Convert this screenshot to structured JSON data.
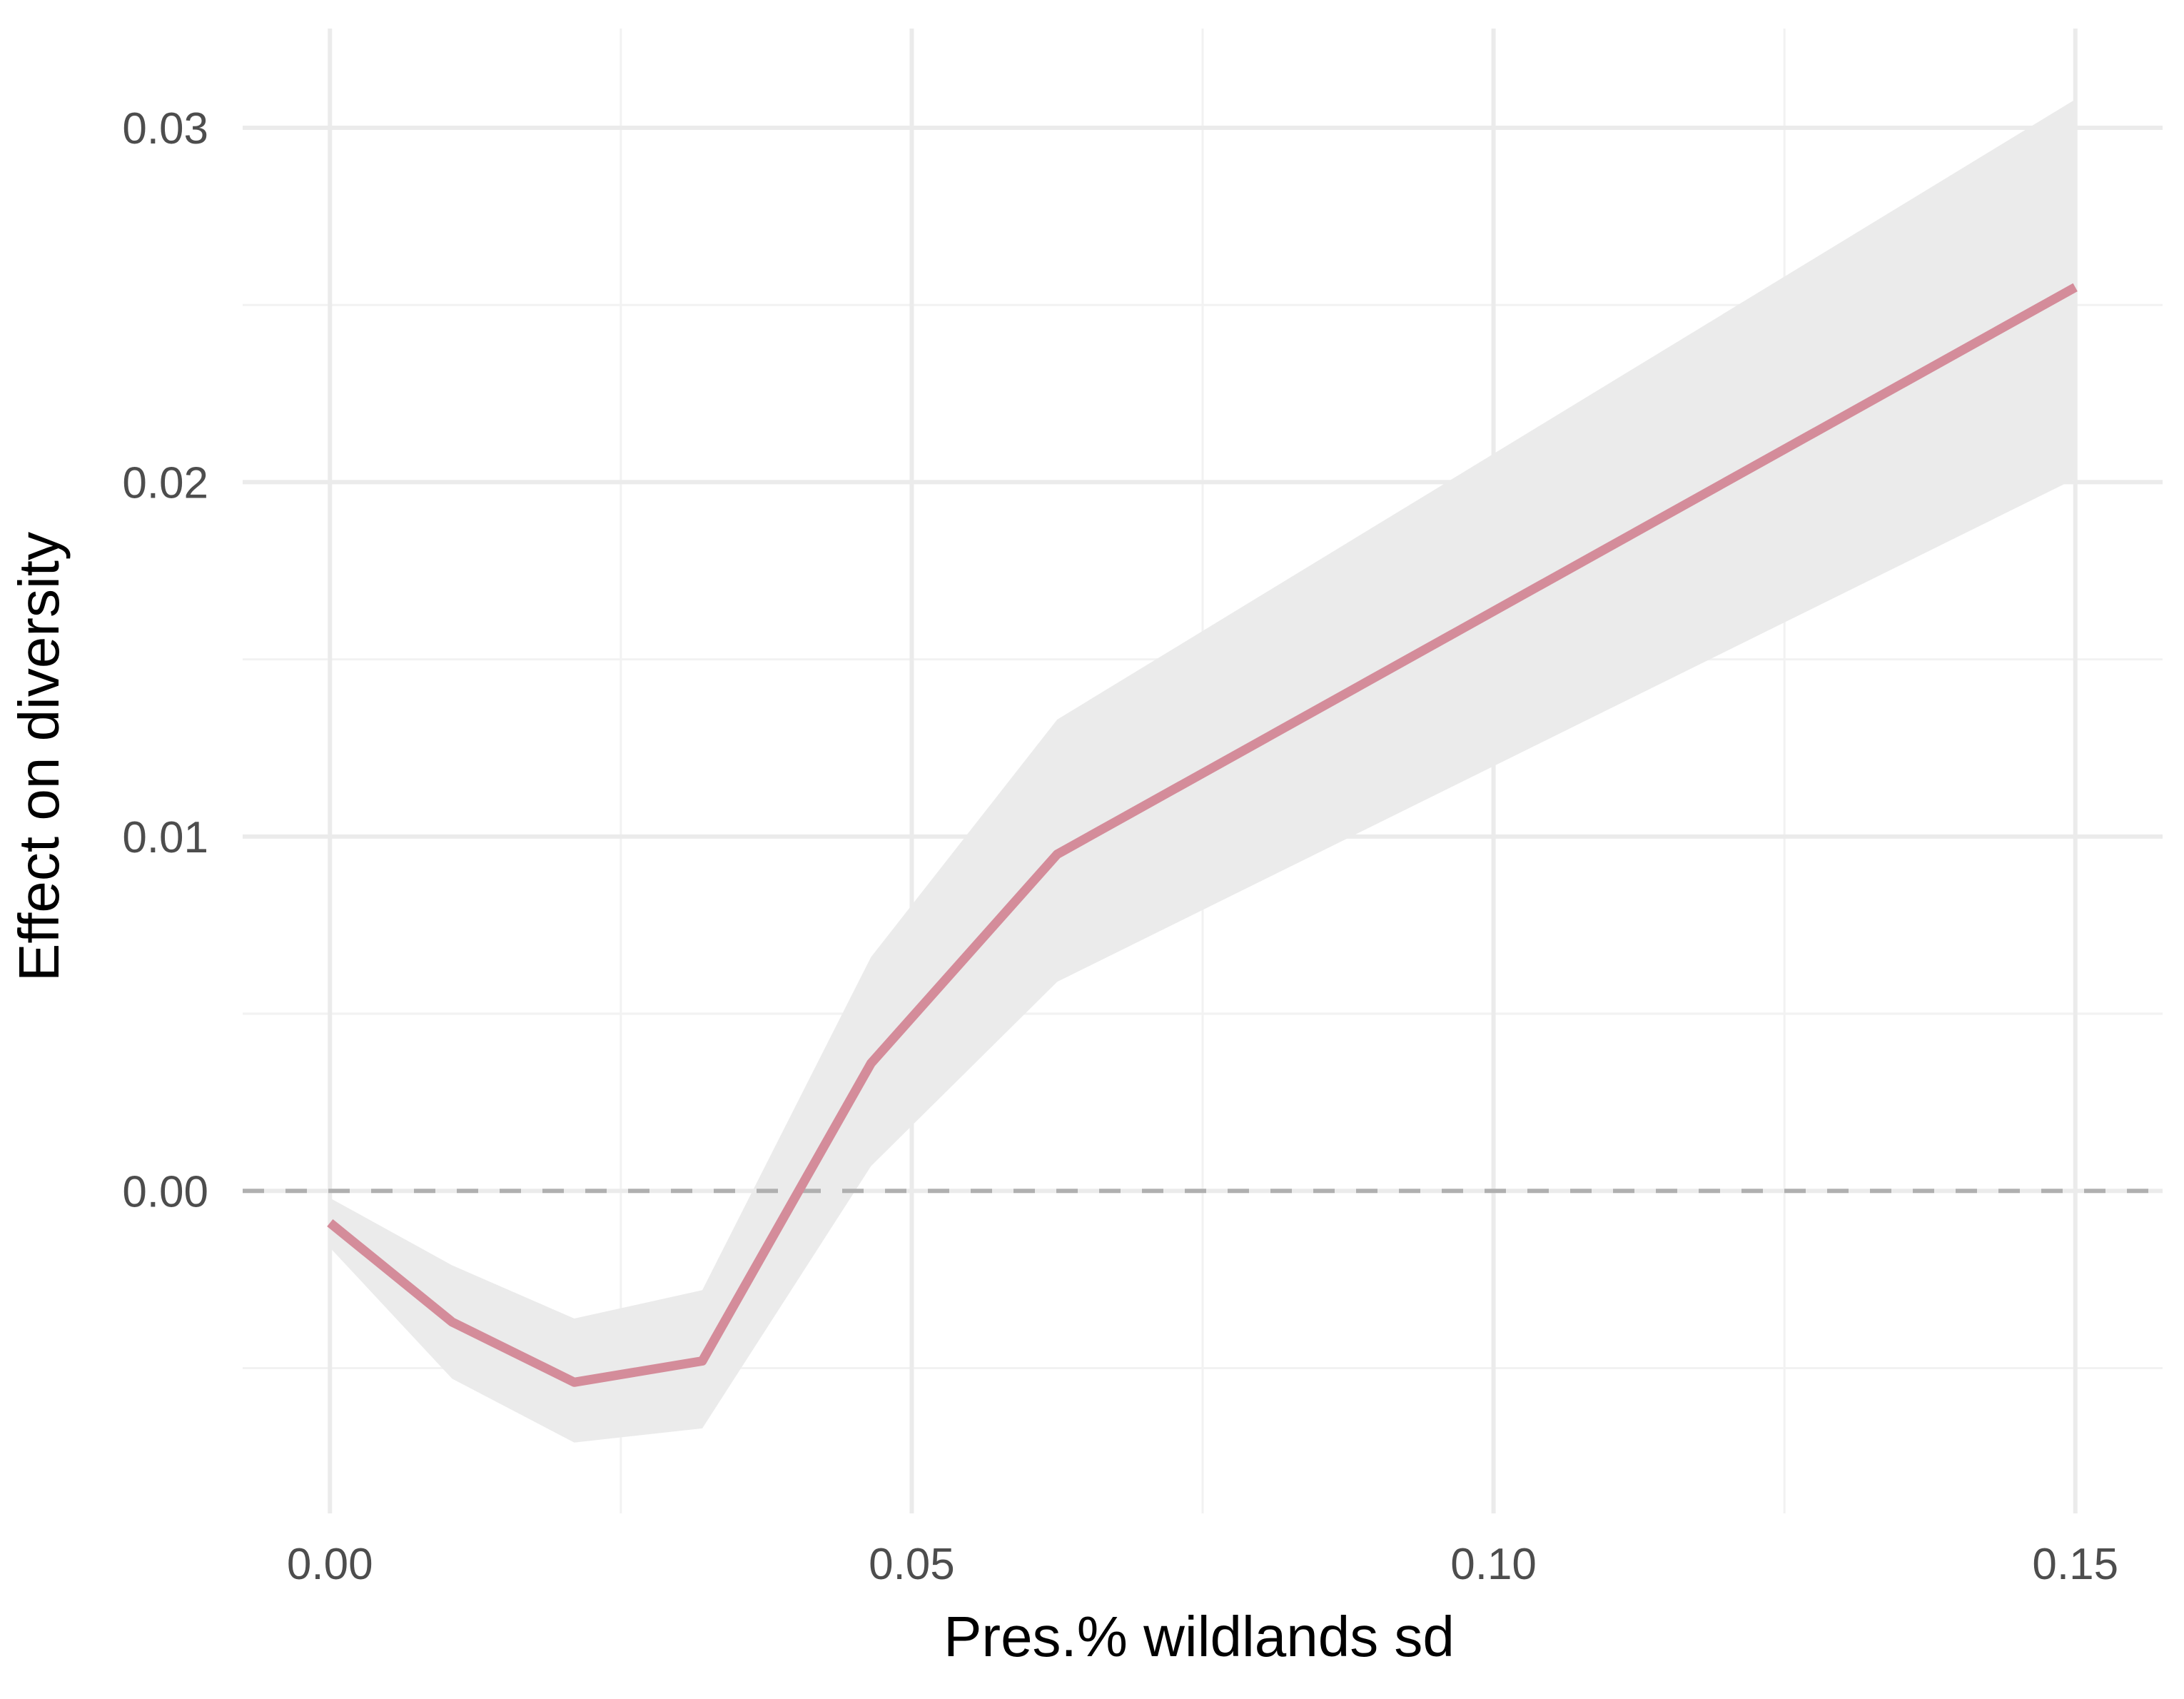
{
  "chart_data": {
    "type": "line",
    "title": "",
    "xlabel": "Pres.% wildlands sd",
    "ylabel": "Effect on diversity",
    "xlim": [
      -0.0075,
      0.1575
    ],
    "ylim": [
      -0.0091,
      0.0328
    ],
    "x_ticks": [
      0.0,
      0.05,
      0.1,
      0.15
    ],
    "x_tick_labels": [
      "0.00",
      "0.05",
      "0.10",
      "0.15"
    ],
    "x_minor_ticks": [
      0.025,
      0.075,
      0.125
    ],
    "y_ticks": [
      0.0,
      0.01,
      0.02,
      0.03
    ],
    "y_tick_labels": [
      "0.00",
      "0.01",
      "0.02",
      "0.03"
    ],
    "y_minor_ticks": [
      -0.005,
      0.005,
      0.015,
      0.025
    ],
    "grid": true,
    "reference_line": {
      "y": 0.0,
      "style": "dashed"
    },
    "series": [
      {
        "x": [
          0.0,
          0.0105,
          0.021,
          0.032,
          0.0465,
          0.0625,
          0.15
        ],
        "y": [
          -0.0009,
          -0.0037,
          -0.0054,
          -0.0048,
          0.0036,
          0.0095,
          0.0255
        ],
        "lower": [
          -0.0016,
          -0.0053,
          -0.0071,
          -0.0067,
          0.0007,
          0.0059,
          0.0201
        ],
        "upper": [
          -0.0002,
          -0.0021,
          -0.0036,
          -0.0028,
          0.0066,
          0.0133,
          0.0308
        ]
      }
    ],
    "colors": {
      "line": "#d48c9a",
      "ribbon": "#ebebeb",
      "grid_major": "#ebebeb",
      "grid_minor": "#f2f2f2",
      "reference_line": "#b0b0b0",
      "tick_text": "#4d4d4d",
      "axis_title": "#000000"
    }
  }
}
